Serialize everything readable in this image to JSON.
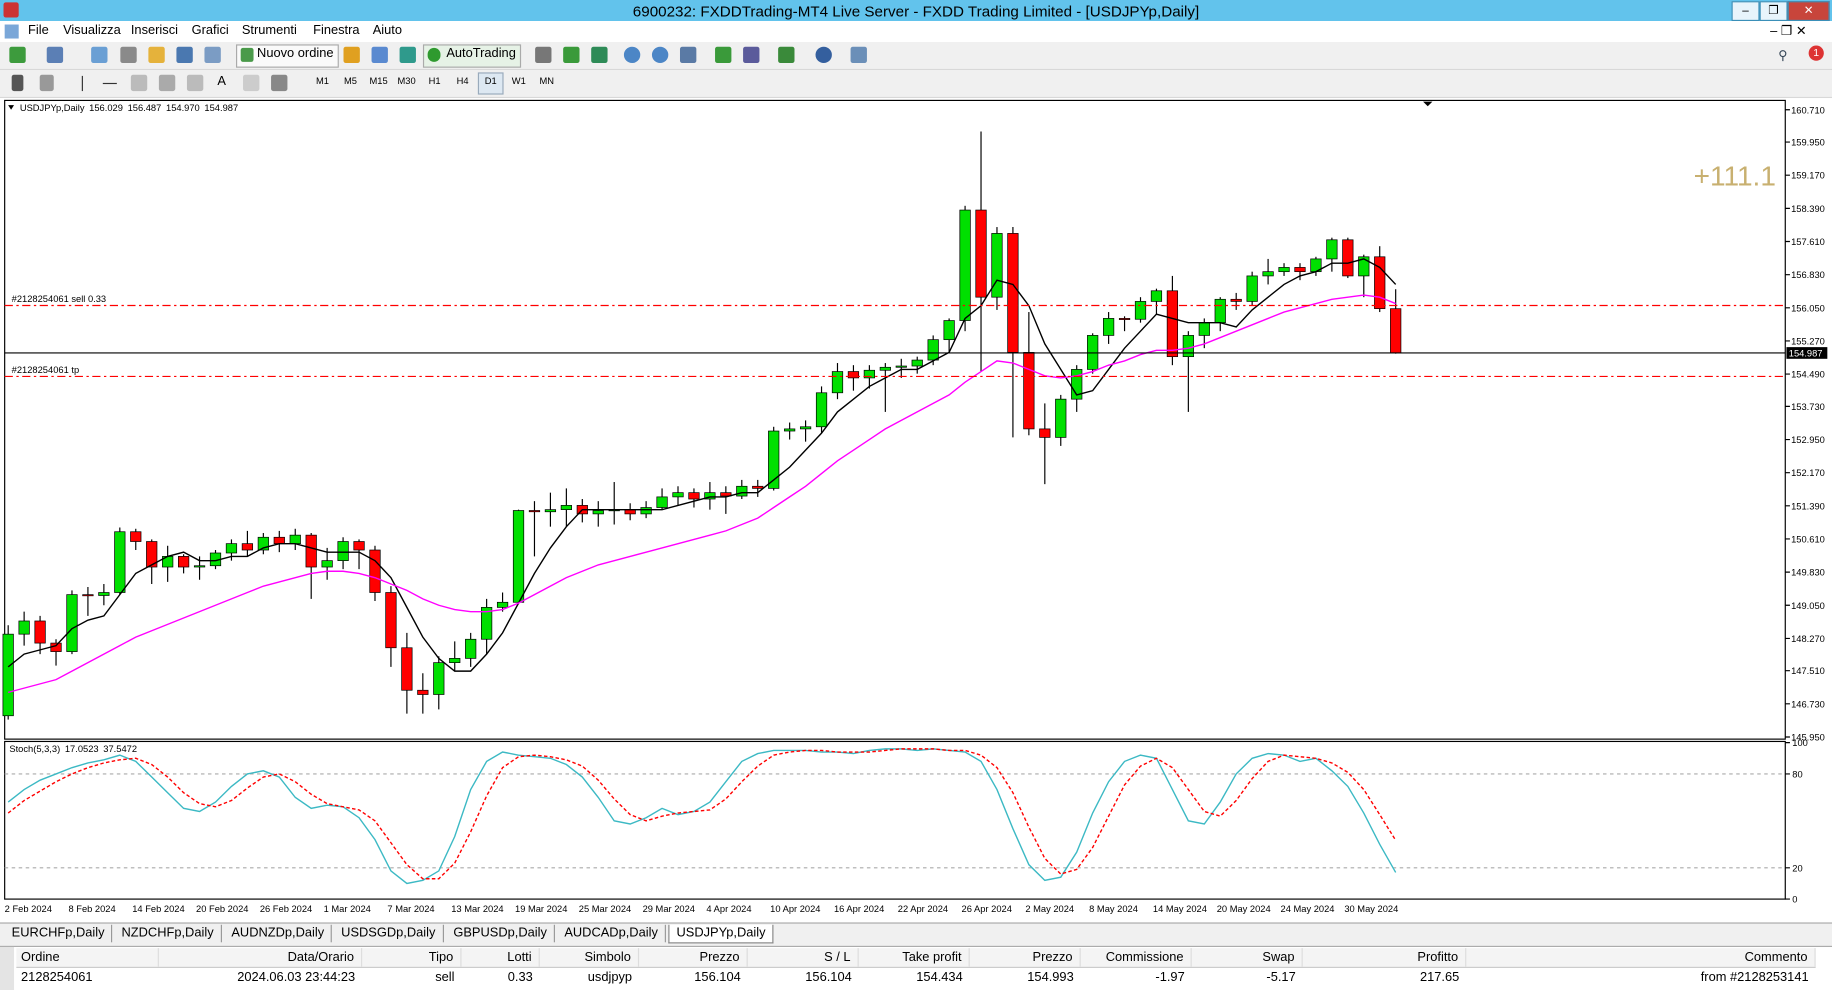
{
  "window_title": "6900232: FXDDTrading-MT4 Live Server - FXDD Trading Limited - [USDJPYp,Daily]",
  "menu": [
    "File",
    "Visualizza",
    "Inserisci",
    "Grafici",
    "Strumenti",
    "Finestra",
    "Aiuto"
  ],
  "toolbar": {
    "new_order": "Nuovo ordine",
    "autotrading": "AutoTrading",
    "timeframes": [
      "M1",
      "M5",
      "M15",
      "M30",
      "H1",
      "H4",
      "D1",
      "W1",
      "MN"
    ]
  },
  "chart_data": [
    {
      "type": "candlestick",
      "title": "USDJPYp,Daily",
      "last_bar_labels": [
        "156.029",
        "156.487",
        "154.970",
        "154.987"
      ],
      "categories": [
        "2 Feb 2024",
        null,
        null,
        null,
        "8 Feb 2024",
        null,
        null,
        null,
        "14 Feb 2024",
        null,
        null,
        null,
        "20 Feb 2024",
        null,
        null,
        null,
        "26 Feb 2024",
        null,
        null,
        null,
        "1 Mar 2024",
        null,
        null,
        null,
        "7 Mar 2024",
        null,
        null,
        null,
        "13 Mar 2024",
        null,
        null,
        null,
        "19 Mar 2024",
        null,
        null,
        null,
        "25 Mar 2024",
        null,
        null,
        null,
        "29 Mar 2024",
        null,
        null,
        null,
        "4 Apr 2024",
        null,
        null,
        null,
        "10 Apr 2024",
        null,
        null,
        null,
        "16 Apr 2024",
        null,
        null,
        null,
        "22 Apr 2024",
        null,
        null,
        null,
        "26 Apr 2024",
        null,
        null,
        null,
        "2 May 2024",
        null,
        null,
        null,
        "8 May 2024",
        null,
        null,
        null,
        "14 May 2024",
        null,
        null,
        null,
        "20 May 2024",
        null,
        null,
        null,
        "24 May 2024",
        null,
        null,
        null,
        "30 May 2024",
        null,
        null,
        null
      ],
      "open": [
        146.45,
        148.37,
        148.68,
        148.16,
        147.96,
        149.3,
        149.28,
        149.35,
        150.78,
        150.55,
        149.95,
        150.2,
        149.95,
        149.98,
        150.28,
        150.5,
        150.35,
        150.65,
        150.5,
        150.7,
        149.95,
        150.1,
        150.55,
        150.35,
        149.35,
        148.05,
        147.05,
        146.95,
        147.7,
        147.8,
        148.25,
        149.0,
        149.12,
        151.28,
        151.25,
        151.3,
        151.4,
        151.2,
        151.28,
        151.3,
        151.2,
        151.35,
        151.6,
        151.7,
        151.55,
        151.7,
        151.62,
        151.85,
        151.8,
        153.15,
        153.2,
        153.25,
        154.05,
        154.55,
        154.4,
        154.58,
        154.65,
        154.68,
        154.82,
        155.3,
        155.75,
        158.35,
        156.3,
        157.8,
        155.0,
        153.2,
        153.0,
        153.9,
        154.6,
        155.4,
        155.8,
        155.78,
        156.2,
        156.45,
        154.9,
        155.4,
        155.7,
        156.25,
        156.2,
        156.8,
        156.9,
        157.0,
        156.9,
        157.2,
        157.65,
        156.8,
        157.25,
        156.029
      ],
      "high": [
        148.58,
        148.9,
        148.8,
        148.25,
        149.4,
        149.48,
        149.55,
        150.88,
        150.85,
        150.6,
        150.45,
        150.25,
        150.2,
        150.35,
        150.6,
        150.8,
        150.75,
        150.8,
        150.85,
        150.75,
        150.4,
        150.65,
        150.6,
        150.45,
        149.5,
        148.4,
        147.45,
        147.85,
        148.2,
        148.4,
        149.2,
        149.35,
        151.3,
        151.5,
        151.7,
        151.8,
        151.55,
        151.5,
        151.95,
        151.45,
        151.5,
        151.8,
        151.85,
        151.8,
        151.95,
        151.85,
        152.0,
        152.0,
        153.25,
        153.35,
        153.4,
        154.2,
        154.75,
        154.7,
        154.7,
        154.75,
        154.85,
        154.9,
        155.4,
        155.8,
        158.45,
        160.2,
        157.95,
        157.95,
        155.95,
        153.8,
        154.0,
        154.7,
        155.45,
        155.95,
        155.85,
        156.3,
        156.5,
        156.8,
        155.5,
        155.8,
        156.3,
        156.4,
        156.9,
        157.2,
        157.1,
        157.1,
        157.25,
        157.7,
        157.7,
        157.3,
        157.5,
        156.487
      ],
      "low": [
        146.36,
        148.1,
        147.9,
        147.63,
        147.9,
        148.8,
        149.05,
        149.3,
        150.35,
        149.55,
        149.6,
        149.8,
        149.65,
        149.9,
        150.1,
        150.2,
        150.25,
        150.3,
        150.35,
        149.2,
        149.65,
        149.9,
        149.9,
        149.15,
        147.6,
        146.5,
        146.5,
        146.6,
        147.5,
        147.6,
        147.9,
        148.9,
        149.1,
        150.2,
        150.9,
        150.9,
        151.0,
        150.9,
        150.95,
        151.05,
        151.1,
        151.3,
        151.4,
        151.35,
        151.3,
        151.2,
        151.55,
        151.6,
        151.75,
        152.95,
        152.9,
        153.1,
        153.9,
        154.1,
        154.15,
        153.6,
        154.4,
        154.5,
        154.7,
        155.0,
        155.5,
        154.55,
        156.0,
        153.0,
        153.05,
        151.9,
        152.8,
        153.6,
        154.5,
        155.2,
        155.5,
        155.7,
        155.9,
        154.7,
        153.6,
        155.1,
        155.5,
        156.0,
        156.1,
        156.6,
        156.8,
        156.7,
        156.8,
        156.9,
        156.75,
        156.3,
        155.95,
        154.97
      ],
      "close": [
        148.37,
        148.68,
        148.16,
        147.96,
        149.3,
        149.28,
        149.35,
        150.78,
        150.55,
        149.95,
        150.2,
        149.95,
        149.98,
        150.28,
        150.5,
        150.35,
        150.65,
        150.5,
        150.7,
        149.95,
        150.1,
        150.55,
        150.35,
        149.35,
        148.05,
        147.05,
        146.95,
        147.7,
        147.8,
        148.25,
        149.0,
        149.12,
        151.28,
        151.25,
        151.3,
        151.4,
        151.2,
        151.28,
        151.3,
        151.2,
        151.35,
        151.6,
        151.7,
        151.55,
        151.7,
        151.62,
        151.85,
        151.8,
        153.15,
        153.2,
        153.25,
        154.05,
        154.55,
        154.4,
        154.58,
        154.65,
        154.68,
        154.82,
        155.3,
        155.75,
        158.35,
        156.3,
        157.8,
        155.0,
        153.2,
        153.0,
        153.9,
        154.6,
        155.4,
        155.8,
        155.78,
        156.2,
        156.45,
        154.9,
        155.4,
        155.7,
        156.25,
        156.2,
        156.8,
        156.9,
        157.0,
        156.9,
        157.2,
        157.65,
        156.8,
        157.25,
        156.03,
        154.987
      ],
      "up_color": "#00e000",
      "down_color": "#ff0000",
      "lines": [
        {
          "color": "#000000",
          "values": [
            147.6,
            147.9,
            148.0,
            148.1,
            148.5,
            148.7,
            148.8,
            149.3,
            149.8,
            150.0,
            150.2,
            150.3,
            150.1,
            150.1,
            150.2,
            150.2,
            150.4,
            150.5,
            150.5,
            150.4,
            150.3,
            150.3,
            150.3,
            150.1,
            149.7,
            149.0,
            148.3,
            147.8,
            147.5,
            147.5,
            147.9,
            148.4,
            149.1,
            149.8,
            150.4,
            150.9,
            151.3,
            151.3,
            151.3,
            151.3,
            151.3,
            151.3,
            151.4,
            151.5,
            151.6,
            151.6,
            151.7,
            151.7,
            152.0,
            152.3,
            152.7,
            153.1,
            153.6,
            153.9,
            154.2,
            154.4,
            154.6,
            154.6,
            154.8,
            155.0,
            155.8,
            156.1,
            156.7,
            156.6,
            156.1,
            155.2,
            154.6,
            154.0,
            154.1,
            154.6,
            155.1,
            155.5,
            155.9,
            155.8,
            155.7,
            155.7,
            155.7,
            155.6,
            156.0,
            156.3,
            156.6,
            156.8,
            156.9,
            157.1,
            157.1,
            157.2,
            157.0,
            156.6
          ]
        },
        {
          "color": "#ff00ff",
          "values": [
            147.0,
            147.1,
            147.2,
            147.3,
            147.5,
            147.7,
            147.9,
            148.1,
            148.3,
            148.45,
            148.6,
            148.75,
            148.9,
            149.05,
            149.2,
            149.35,
            149.5,
            149.6,
            149.7,
            149.8,
            149.85,
            149.85,
            149.8,
            149.7,
            149.55,
            149.4,
            149.2,
            149.05,
            148.95,
            148.9,
            148.9,
            148.95,
            149.1,
            149.3,
            149.5,
            149.7,
            149.85,
            150.0,
            150.1,
            150.2,
            150.3,
            150.4,
            150.5,
            150.6,
            150.7,
            150.8,
            150.95,
            151.1,
            151.35,
            151.6,
            151.85,
            152.15,
            152.45,
            152.7,
            152.95,
            153.2,
            153.4,
            153.6,
            153.8,
            154.0,
            154.3,
            154.55,
            154.8,
            154.75,
            154.6,
            154.45,
            154.4,
            154.45,
            154.55,
            154.7,
            154.8,
            154.95,
            155.05,
            155.05,
            155.1,
            155.2,
            155.35,
            155.5,
            155.65,
            155.8,
            155.95,
            156.05,
            156.15,
            156.25,
            156.3,
            156.35,
            156.3,
            156.15
          ]
        }
      ],
      "levels": [
        {
          "value": 156.104,
          "label": "#2128254061 sell 0.33",
          "color": "#ff0000"
        },
        {
          "value": 154.434,
          "label": "#2128254061 tp",
          "color": "#ff0000"
        }
      ],
      "annotation": "+111.1",
      "ylim": [
        145.9,
        160.93
      ],
      "yticks": [
        {
          "value": 160.71,
          "label": "160.710"
        },
        {
          "value": 159.95,
          "label": "159.950"
        },
        {
          "value": 159.17,
          "label": "159.170"
        },
        {
          "value": 158.39,
          "label": "158.390"
        },
        {
          "value": 157.61,
          "label": "157.610"
        },
        {
          "value": 156.83,
          "label": "156.830"
        },
        {
          "value": 156.05,
          "label": "156.050"
        },
        {
          "value": 155.27,
          "label": "155.270"
        },
        {
          "value": 154.49,
          "label": "154.490"
        },
        {
          "value": 153.73,
          "label": "153.730"
        },
        {
          "value": 152.95,
          "label": "152.950"
        },
        {
          "value": 152.17,
          "label": "152.170"
        },
        {
          "value": 151.39,
          "label": "151.390"
        },
        {
          "value": 150.61,
          "label": "150.610"
        },
        {
          "value": 149.83,
          "label": "149.830"
        },
        {
          "value": 149.05,
          "label": "149.050"
        },
        {
          "value": 148.27,
          "label": "148.270"
        },
        {
          "value": 147.51,
          "label": "147.510"
        },
        {
          "value": 146.73,
          "label": "146.730"
        },
        {
          "value": 145.95,
          "label": "145.950"
        }
      ],
      "grid": false
    },
    {
      "type": "line",
      "title": "Stoch(5,3,3)",
      "series": [
        {
          "color": "#3cb9c4",
          "dashed": false,
          "values": [
            62,
            70,
            76,
            80,
            84,
            87,
            89,
            92,
            88,
            78,
            68,
            58,
            56,
            62,
            72,
            80,
            82,
            78,
            65,
            58,
            60,
            59,
            52,
            38,
            18,
            10,
            12,
            18,
            40,
            70,
            88,
            94,
            92,
            91,
            90,
            86,
            78,
            65,
            50,
            48,
            52,
            58,
            54,
            56,
            62,
            75,
            88,
            93,
            95,
            95,
            95,
            94,
            94,
            93,
            95,
            96,
            96,
            95,
            96,
            95,
            94,
            88,
            70,
            45,
            22,
            12,
            14,
            30,
            55,
            75,
            88,
            92,
            90,
            70,
            50,
            48,
            62,
            80,
            90,
            93,
            92,
            88,
            90,
            82,
            72,
            55,
            35,
            17.0523
          ]
        },
        {
          "color": "#ff0000",
          "dashed": true,
          "values": [
            55,
            63,
            69,
            75,
            80,
            84,
            87,
            89,
            90,
            86,
            78,
            68,
            61,
            59,
            63,
            71,
            78,
            80,
            75,
            67,
            61,
            59,
            57,
            50,
            36,
            22,
            13,
            13,
            23,
            43,
            66,
            84,
            91,
            92,
            91,
            89,
            85,
            76,
            64,
            54,
            50,
            53,
            55,
            56,
            57,
            64,
            75,
            85,
            92,
            94,
            95,
            95,
            94,
            94,
            94,
            95,
            96,
            96,
            96,
            95,
            95,
            92,
            84,
            68,
            46,
            26,
            16,
            19,
            33,
            53,
            73,
            85,
            90,
            84,
            70,
            56,
            53,
            63,
            77,
            88,
            92,
            91,
            90,
            87,
            81,
            70,
            54,
            37.5472
          ]
        }
      ],
      "levels": [
        80,
        20
      ],
      "ylim": [
        0,
        100
      ],
      "yticks": [
        100,
        80,
        20,
        0
      ],
      "grid": false
    }
  ],
  "tabs": [
    "EURCHFp,Daily",
    "NZDCHFp,Daily",
    "AUDNZDp,Daily",
    "USDSGDp,Daily",
    "GBPUSDp,Daily",
    "AUDCADp,Daily",
    "USDJPYp,Daily"
  ],
  "terminal": {
    "columns": [
      "Ordine",
      "Data/Orario",
      "Tipo",
      "Lotti",
      "Simbolo",
      "Prezzo",
      "S / L",
      "Take profit",
      "Prezzo",
      "Commissione",
      "Swap",
      "Profitto",
      "Commento"
    ],
    "rows": [
      [
        "2128254061",
        "2024.06.03 23:44:23",
        "sell",
        "0.33",
        "usdjpyp",
        "156.104",
        "156.104",
        "154.434",
        "154.993",
        "-1.97",
        "-5.17",
        "217.65",
        "from #2128253141"
      ]
    ]
  }
}
